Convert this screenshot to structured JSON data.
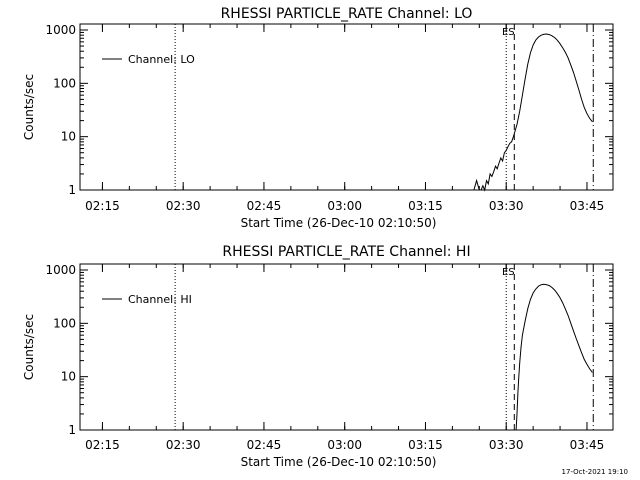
{
  "chart_data": [
    {
      "type": "line",
      "title": "RHESSI PARTICLE_RATE Channel: LO",
      "xlabel": "Start Time (26-Dec-10 02:10:50)",
      "ylabel": "Counts/sec",
      "ylog": true,
      "ylim": [
        1,
        1000
      ],
      "xlim": [
        "02:10:50",
        "03:49:50"
      ],
      "xticks": [
        "02:15",
        "02:30",
        "02:45",
        "03:00",
        "03:15",
        "03:30",
        "03:45"
      ],
      "yticks": [
        "1",
        "10",
        "100",
        "1000"
      ],
      "legend": {
        "entries": [
          "Channel: LO"
        ],
        "position": "top-left"
      },
      "markers": [
        {
          "time": "02:28:30",
          "style": "dotted"
        },
        {
          "time": "03:30:00",
          "style": "dotted"
        },
        {
          "time": "03:31:30",
          "style": "dashed",
          "label": "ES"
        },
        {
          "time": "03:46:10",
          "style": "dash-dot"
        }
      ],
      "series": [
        {
          "name": "Channel: LO",
          "x": [
            "03:24:00",
            "03:24:30",
            "03:25:00",
            "03:25:20",
            "03:25:40",
            "03:26:00",
            "03:26:20",
            "03:26:40",
            "03:27:00",
            "03:27:20",
            "03:27:40",
            "03:28:00",
            "03:28:20",
            "03:28:40",
            "03:29:00",
            "03:29:20",
            "03:29:40",
            "03:30:00",
            "03:30:20",
            "03:30:40",
            "03:31:00",
            "03:31:20",
            "03:31:40",
            "03:32:00",
            "03:32:30",
            "03:33:00",
            "03:33:30",
            "03:34:00",
            "03:34:30",
            "03:35:00",
            "03:35:30",
            "03:36:00",
            "03:36:30",
            "03:37:00",
            "03:37:30",
            "03:38:00",
            "03:38:30",
            "03:39:00",
            "03:39:30",
            "03:40:00",
            "03:40:30",
            "03:41:00",
            "03:41:30",
            "03:42:00",
            "03:42:30",
            "03:43:00",
            "03:43:30",
            "03:44:00",
            "03:44:30",
            "03:45:00",
            "03:45:30",
            "03:46:00"
          ],
          "values": [
            1,
            1.5,
            1,
            1,
            1.2,
            1,
            1.5,
            1.3,
            2,
            1.8,
            2.2,
            2.8,
            2.5,
            3.2,
            4,
            3.5,
            5,
            5.5,
            6.5,
            7.5,
            8,
            10,
            13,
            17,
            30,
            60,
            120,
            230,
            370,
            520,
            650,
            740,
            800,
            830,
            840,
            820,
            780,
            720,
            640,
            550,
            460,
            380,
            300,
            220,
            160,
            110,
            75,
            50,
            35,
            27,
            22,
            19
          ]
        }
      ]
    },
    {
      "type": "line",
      "title": "RHESSI PARTICLE_RATE Channel: HI",
      "xlabel": "Start Time (26-Dec-10 02:10:50)",
      "ylabel": "Counts/sec",
      "ylog": true,
      "ylim": [
        1,
        1000
      ],
      "xlim": [
        "02:10:50",
        "03:49:50"
      ],
      "xticks": [
        "02:15",
        "02:30",
        "02:45",
        "03:00",
        "03:15",
        "03:30",
        "03:45"
      ],
      "yticks": [
        "1",
        "10",
        "100",
        "1000"
      ],
      "legend": {
        "entries": [
          "Channel: HI"
        ],
        "position": "top-left"
      },
      "markers": [
        {
          "time": "02:28:30",
          "style": "dotted"
        },
        {
          "time": "03:30:00",
          "style": "dotted"
        },
        {
          "time": "03:31:30",
          "style": "dashed",
          "label": "ES"
        },
        {
          "time": "03:46:10",
          "style": "dash-dot"
        }
      ],
      "series": [
        {
          "name": "Channel: HI",
          "x": [
            "03:31:50",
            "03:32:00",
            "03:32:10",
            "03:32:20",
            "03:32:30",
            "03:32:45",
            "03:33:00",
            "03:33:30",
            "03:34:00",
            "03:34:30",
            "03:35:00",
            "03:35:30",
            "03:36:00",
            "03:36:30",
            "03:37:00",
            "03:37:30",
            "03:38:00",
            "03:38:30",
            "03:39:00",
            "03:39:30",
            "03:40:00",
            "03:40:30",
            "03:41:00",
            "03:41:30",
            "03:42:00",
            "03:42:30",
            "03:43:00",
            "03:43:30",
            "03:44:00",
            "03:44:30",
            "03:45:00",
            "03:45:30",
            "03:46:00"
          ],
          "values": [
            1,
            2,
            5,
            10,
            18,
            35,
            60,
            110,
            190,
            280,
            370,
            440,
            500,
            530,
            540,
            530,
            510,
            470,
            420,
            360,
            300,
            240,
            185,
            140,
            100,
            72,
            52,
            38,
            28,
            21,
            17,
            14,
            12
          ]
        }
      ]
    }
  ],
  "footer": {
    "stamp": "17-Oct-2021 19:10"
  }
}
